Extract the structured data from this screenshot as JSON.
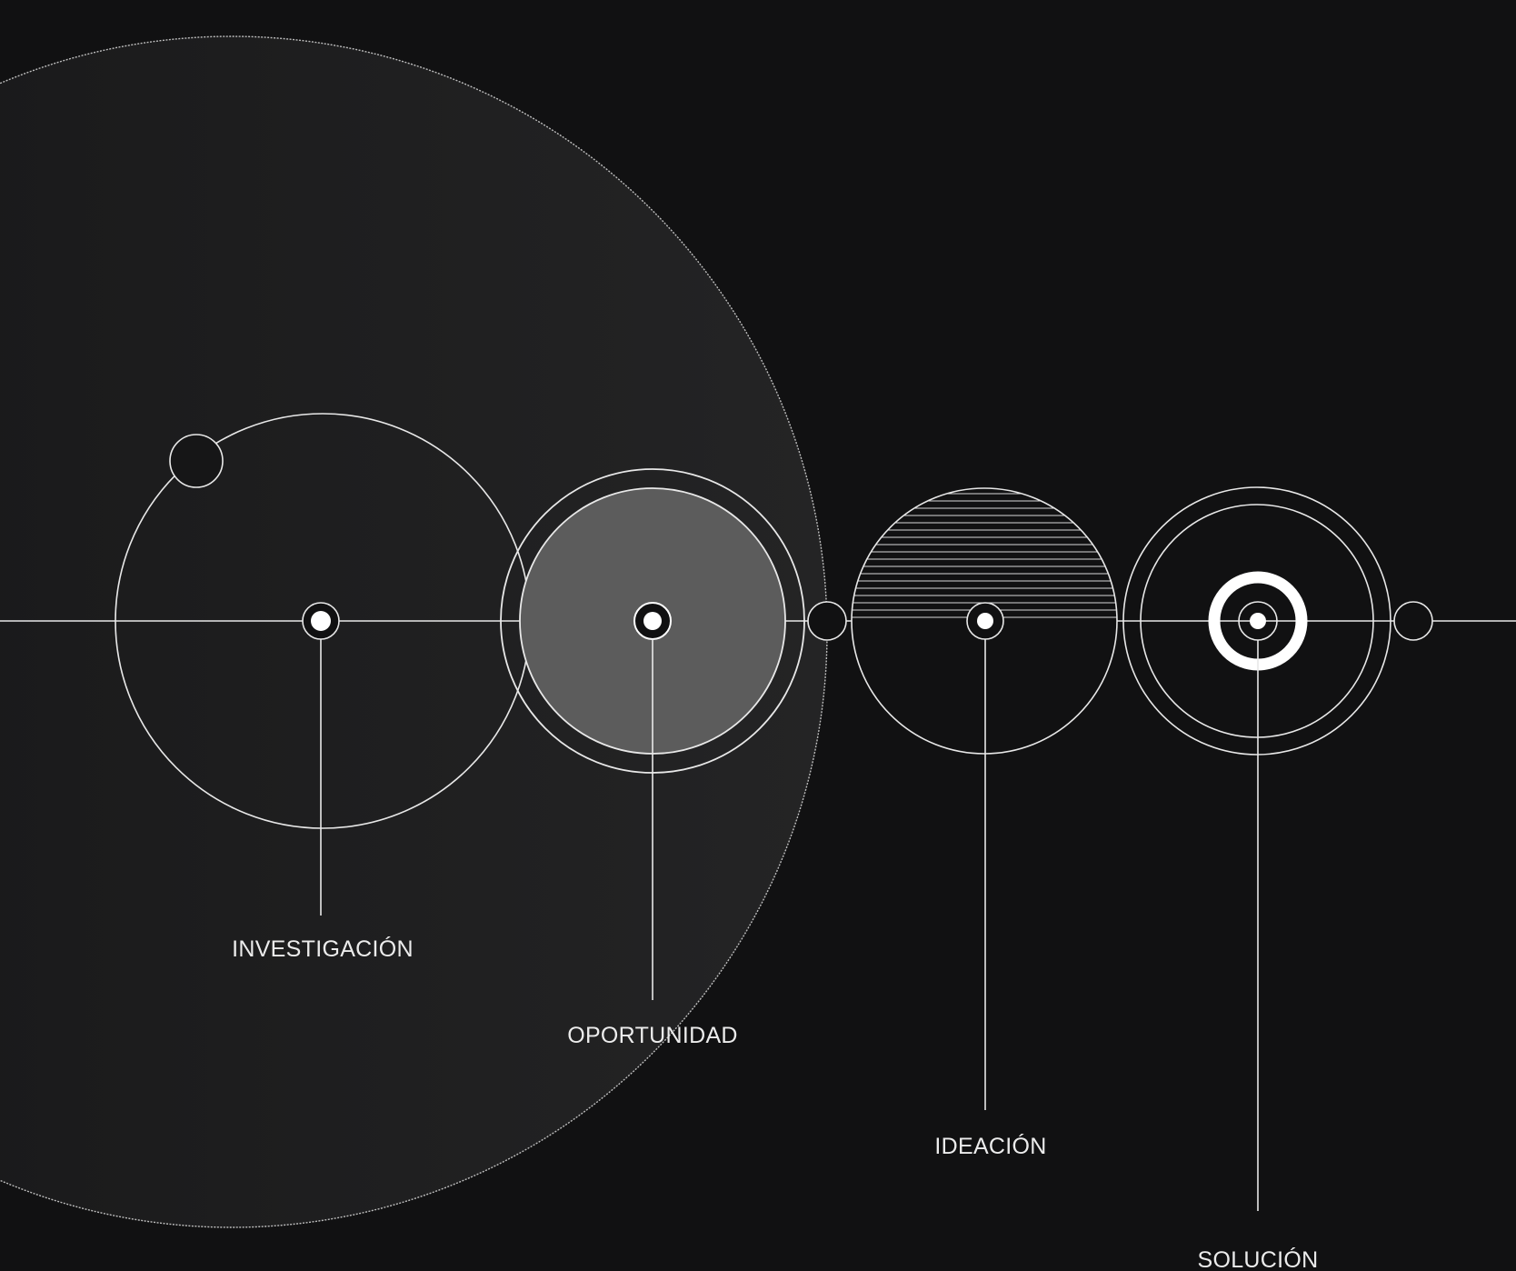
{
  "stages": [
    {
      "id": "investigacion",
      "label": "INVESTIGACIÓN"
    },
    {
      "id": "oportunidad",
      "label": "OPORTUNIDAD"
    },
    {
      "id": "ideacion",
      "label": "IDEACIÓN"
    },
    {
      "id": "solucion",
      "label": "SOLUCIÓN"
    }
  ],
  "colors": {
    "background": "#111112",
    "line": "#e8e8e8",
    "accent": "#ffffff",
    "opportunity_fill": "#5c5c5c"
  }
}
